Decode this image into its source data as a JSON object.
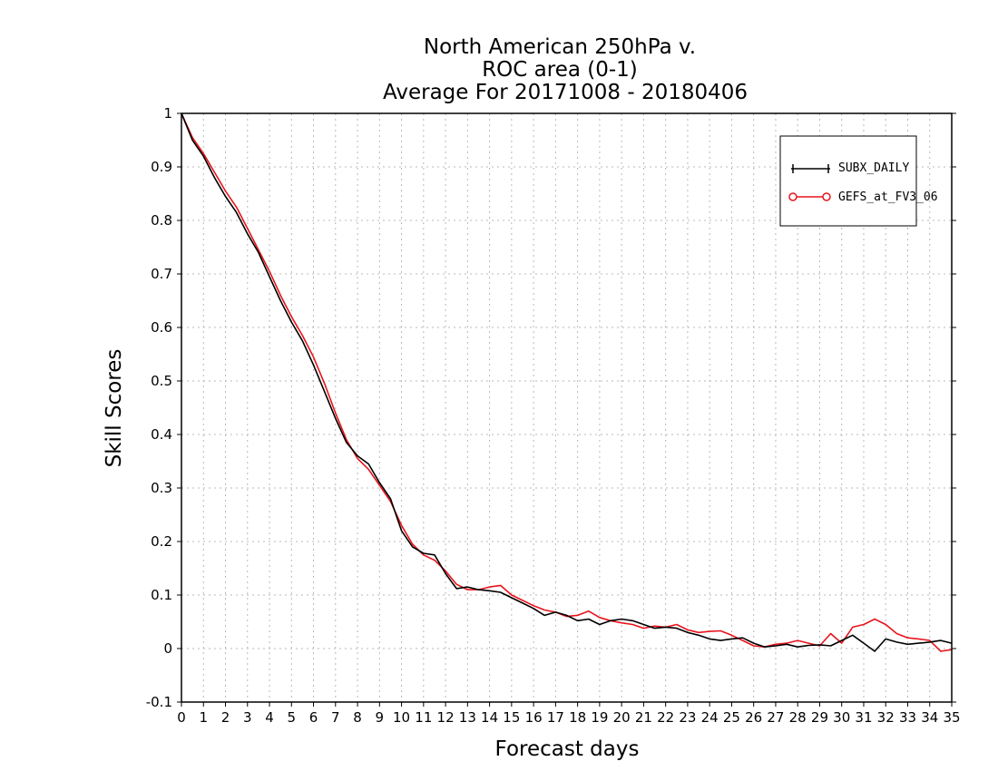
{
  "chart_data": {
    "type": "line",
    "title_lines": [
      "North American 250hPa v.",
      "ROC area (0-1)",
      "Average For 20171008 - 20180406"
    ],
    "xlabel": "Forecast days",
    "ylabel": "Skill Scores",
    "xlim": [
      0,
      35
    ],
    "ylim": [
      -0.1,
      1
    ],
    "grid": true,
    "legend_position": "top-right",
    "x_ticks": [
      0,
      1,
      2,
      3,
      4,
      5,
      6,
      7,
      8,
      9,
      10,
      11,
      12,
      13,
      14,
      15,
      16,
      17,
      18,
      19,
      20,
      21,
      22,
      23,
      24,
      25,
      26,
      27,
      28,
      29,
      30,
      31,
      32,
      33,
      34,
      35
    ],
    "y_ticks": [
      {
        "value": -0.1,
        "label": "-0.1"
      },
      {
        "value": 0,
        "label": "0"
      },
      {
        "value": 0.1,
        "label": "0.1"
      },
      {
        "value": 0.2,
        "label": "0.2"
      },
      {
        "value": 0.3,
        "label": "0.3"
      },
      {
        "value": 0.4,
        "label": "0.4"
      },
      {
        "value": 0.5,
        "label": "0.5"
      },
      {
        "value": 0.6,
        "label": "0.6"
      },
      {
        "value": 0.7,
        "label": "0.7"
      },
      {
        "value": 0.8,
        "label": "0.8"
      },
      {
        "value": 0.9,
        "label": "0.9"
      },
      {
        "value": 1,
        "label": "1"
      }
    ],
    "series": [
      {
        "name": "SUBX_DAILY",
        "color": "#000000",
        "marker": "plus",
        "x": [
          0,
          0.5,
          1,
          1.5,
          2,
          2.5,
          3,
          3.5,
          4,
          4.5,
          5,
          5.5,
          6,
          6.5,
          7,
          7.5,
          8,
          8.5,
          9,
          9.5,
          10,
          10.5,
          11,
          11.5,
          12,
          12.5,
          13,
          13.5,
          14,
          14.5,
          15,
          15.5,
          16,
          16.5,
          17,
          17.5,
          18,
          18.5,
          19,
          19.5,
          20,
          20.5,
          21,
          21.5,
          22,
          22.5,
          23,
          23.5,
          24,
          24.5,
          25,
          25.5,
          26,
          26.5,
          27,
          27.5,
          28,
          28.5,
          29,
          29.5,
          30,
          30.5,
          31,
          31.5,
          32,
          32.5,
          33,
          33.5,
          34,
          34.5,
          35
        ],
        "y": [
          1.0,
          0.95,
          0.92,
          0.88,
          0.845,
          0.815,
          0.775,
          0.74,
          0.695,
          0.65,
          0.61,
          0.575,
          0.53,
          0.48,
          0.43,
          0.385,
          0.36,
          0.345,
          0.31,
          0.28,
          0.22,
          0.19,
          0.178,
          0.175,
          0.14,
          0.112,
          0.115,
          0.11,
          0.108,
          0.105,
          0.095,
          0.085,
          0.075,
          0.062,
          0.068,
          0.062,
          0.052,
          0.055,
          0.045,
          0.052,
          0.055,
          0.052,
          0.045,
          0.038,
          0.04,
          0.038,
          0.03,
          0.025,
          0.018,
          0.015,
          0.018,
          0.02,
          0.01,
          0.003,
          0.005,
          0.008,
          0.003,
          0.006,
          0.007,
          0.005,
          0.015,
          0.025,
          0.01,
          -0.005,
          0.018,
          0.012,
          0.008,
          0.01,
          0.012,
          0.015,
          0.01
        ]
      },
      {
        "name": "GEFS_at_FV3_06",
        "color": "#e8141c",
        "marker": "circle",
        "x": [
          0,
          0.5,
          1,
          1.5,
          2,
          2.5,
          3,
          3.5,
          4,
          4.5,
          5,
          5.5,
          6,
          6.5,
          7,
          7.5,
          8,
          8.5,
          9,
          9.5,
          10,
          10.5,
          11,
          11.5,
          12,
          12.5,
          13,
          13.5,
          14,
          14.5,
          15,
          15.5,
          16,
          16.5,
          17,
          17.5,
          18,
          18.5,
          19,
          19.5,
          20,
          20.5,
          21,
          21.5,
          22,
          22.5,
          23,
          23.5,
          24,
          24.5,
          25,
          25.5,
          26,
          26.5,
          27,
          27.5,
          28,
          28.5,
          29,
          29.5,
          30,
          30.5,
          31,
          31.5,
          32,
          32.5,
          33,
          33.5,
          34,
          34.5,
          35
        ],
        "y": [
          1.0,
          0.955,
          0.925,
          0.89,
          0.855,
          0.825,
          0.785,
          0.745,
          0.705,
          0.66,
          0.62,
          0.585,
          0.545,
          0.495,
          0.44,
          0.39,
          0.355,
          0.335,
          0.305,
          0.275,
          0.23,
          0.195,
          0.175,
          0.165,
          0.145,
          0.12,
          0.11,
          0.11,
          0.115,
          0.118,
          0.1,
          0.09,
          0.08,
          0.072,
          0.068,
          0.06,
          0.062,
          0.07,
          0.058,
          0.052,
          0.048,
          0.045,
          0.038,
          0.042,
          0.04,
          0.045,
          0.035,
          0.03,
          0.032,
          0.033,
          0.025,
          0.015,
          0.005,
          0.003,
          0.008,
          0.01,
          0.015,
          0.01,
          0.005,
          0.028,
          0.01,
          0.04,
          0.045,
          0.055,
          0.045,
          0.028,
          0.02,
          0.018,
          0.015,
          -0.005,
          -0.002
        ]
      }
    ]
  }
}
